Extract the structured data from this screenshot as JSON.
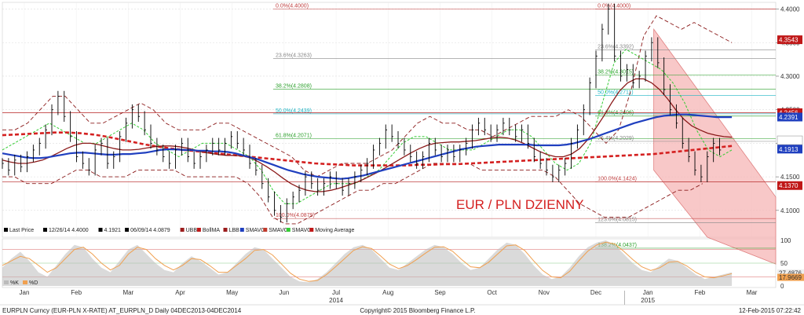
{
  "footer": {
    "left": "EURPLN Curncy (EUR-PLN X-RATE) AT_EURPLN_D  Daily 04DEC2013-04DEC2014",
    "center": "Copyright© 2015 Bloomberg Finance L.P.",
    "right": "12-Feb-2015 07:22:42"
  },
  "legend": {
    "items": [
      {
        "label": "Last Price",
        "color": "#000000"
      },
      {
        "label": "12/26/14 4.4000",
        "color": "#000000"
      },
      {
        "label": "4.1921",
        "color": "#000000"
      },
      {
        "label": "06/09/14 4.0879",
        "color": "#000000"
      },
      {
        "label": "UBB",
        "color": "#9b1c1c"
      },
      {
        "label": "BollMA",
        "color": "#c01818"
      },
      {
        "label": "LBB",
        "color": "#9b1c1c"
      },
      {
        "label": "SMAVG",
        "color": "#1f3fbf"
      },
      {
        "label": "SMAVG",
        "color": "#c0392b"
      },
      {
        "label": "SMAVG",
        "color": "#33cc33"
      },
      {
        "label": "Moving Average",
        "color": "#c01818"
      }
    ]
  },
  "oscillator_legend": {
    "k_label": "%K",
    "d_label": "%D"
  },
  "colors": {
    "price": "#000000",
    "bollinger": "#8b1a1a",
    "sma_blue": "#1f3fbf",
    "sma_red": "#8b1a1a",
    "sma_green": "#33cc33",
    "moving_average": "#d42020",
    "channel_fill": "#f6b6b6",
    "fib_red": "#c04040",
    "fib_green": "#2ca02c",
    "fib_cyan": "#1fb5c4",
    "stoch_k": "#bbbbbb",
    "stoch_d": "#f0a050"
  },
  "chart_data": {
    "type": "line",
    "title": "EUR / PLN DZIENNY",
    "ylim": [
      4.06,
      4.41
    ],
    "x_months": [
      "Jan",
      "Feb",
      "Mar",
      "Apr",
      "May",
      "Jun",
      "Jul",
      "Aug",
      "Sep",
      "Oct",
      "Nov",
      "Dec",
      "Jan",
      "Feb",
      "Mar"
    ],
    "x_years": [
      "2014",
      "2015"
    ],
    "y_ticks": [
      "4.4000",
      "4.3500",
      "4.3000",
      "4.2500",
      "4.2000",
      "4.1500",
      "4.1000"
    ],
    "price_badges": [
      {
        "label": "4.3543",
        "value": 4.3543,
        "color": "#c01818"
      },
      {
        "label": "4.2456",
        "value": 4.2456,
        "color": "#c01818"
      },
      {
        "label": "4.2391",
        "value": 4.2391,
        "color": "#1f3fbf"
      },
      {
        "label": "4.2045",
        "value": 4.2045,
        "color": "#ffffff"
      },
      {
        "label": "4.1913",
        "value": 4.1913,
        "color": "#1f3fbf"
      },
      {
        "label": "4.1370",
        "value": 4.137,
        "color": "#c01818"
      }
    ],
    "fibonacci_left": [
      {
        "label": "0.0%(4.4000)",
        "value": 4.4,
        "color": "#c04040"
      },
      {
        "label": "23.6%(4.3263)",
        "value": 4.3263,
        "color": "#888888"
      },
      {
        "label": "38.2%(4.2808)",
        "value": 4.2808,
        "color": "#2ca02c"
      },
      {
        "label": "50.0%(4.2439)",
        "value": 4.2439,
        "color": "#1fb5c4"
      },
      {
        "label": "61.8%(4.2071)",
        "value": 4.2071,
        "color": "#2ca02c"
      },
      {
        "label": "100.0%(4.0879)",
        "value": 4.0879,
        "color": "#c04040"
      }
    ],
    "fibonacci_right": [
      {
        "label": "0.0%(4.4000)",
        "value": 4.4,
        "color": "#c04040"
      },
      {
        "label": "23.6%(4.3392)",
        "value": 4.3392,
        "color": "#888888"
      },
      {
        "label": "38.2%(4.3015)",
        "value": 4.3015,
        "color": "#2ca02c"
      },
      {
        "label": "50.0%(4.2711)",
        "value": 4.2711,
        "color": "#1fb5c4"
      },
      {
        "label": "61.8%(4.2406)",
        "value": 4.2406,
        "color": "#2ca02c"
      },
      {
        "label": "76.4%(4.2029)",
        "value": 4.2029,
        "color": "#888888"
      },
      {
        "label": "100.0%(4.1424)",
        "value": 4.1424,
        "color": "#c04040"
      },
      {
        "label": "123.6%(4.0815)",
        "value": 4.0815,
        "color": "#888888"
      },
      {
        "label": "138.2%(4.0437)",
        "value": 4.0437,
        "color": "#2ca02c"
      }
    ],
    "series_close": [
      4.17,
      4.16,
      4.175,
      4.165,
      4.18,
      4.19,
      4.2,
      4.22,
      4.25,
      4.27,
      4.24,
      4.21,
      4.18,
      4.17,
      4.16,
      4.19,
      4.2,
      4.17,
      4.18,
      4.21,
      4.23,
      4.25,
      4.24,
      4.22,
      4.2,
      4.19,
      4.18,
      4.17,
      4.19,
      4.2,
      4.18,
      4.17,
      4.18,
      4.19,
      4.2,
      4.19,
      4.2,
      4.21,
      4.2,
      4.19,
      4.17,
      4.16,
      4.14,
      4.12,
      4.1,
      4.09,
      4.11,
      4.12,
      4.13,
      4.15,
      4.14,
      4.13,
      4.14,
      4.15,
      4.14,
      4.13,
      4.14,
      4.15,
      4.16,
      4.17,
      4.19,
      4.2,
      4.22,
      4.21,
      4.2,
      4.19,
      4.18,
      4.17,
      4.18,
      4.2,
      4.19,
      4.18,
      4.19,
      4.18,
      4.19,
      4.2,
      4.22,
      4.23,
      4.22,
      4.21,
      4.22,
      4.23,
      4.22,
      4.21,
      4.22,
      4.2,
      4.18,
      4.17,
      4.16,
      4.15,
      4.16,
      4.17,
      4.2,
      4.22,
      4.25,
      4.29,
      4.33,
      4.37,
      4.4,
      4.33,
      4.3,
      4.31,
      4.29,
      4.3,
      4.33,
      4.35,
      4.32,
      4.28,
      4.25,
      4.23,
      4.2,
      4.18,
      4.16,
      4.15,
      4.18,
      4.2,
      4.19
    ],
    "series_sma_blue": [
      4.185,
      4.183,
      4.181,
      4.179,
      4.178,
      4.178,
      4.179,
      4.181,
      4.183,
      4.185,
      4.186,
      4.186,
      4.185,
      4.184,
      4.183,
      4.183,
      4.184,
      4.184,
      4.185,
      4.186,
      4.188,
      4.19,
      4.191,
      4.191,
      4.19,
      4.19,
      4.189,
      4.189,
      4.188,
      4.188,
      4.187,
      4.185,
      4.182,
      4.179,
      4.176,
      4.172,
      4.168,
      4.164,
      4.16,
      4.157,
      4.154,
      4.152,
      4.15,
      4.149,
      4.148,
      4.147,
      4.148,
      4.15,
      4.152,
      4.155,
      4.158,
      4.161,
      4.164,
      4.167,
      4.17,
      4.173,
      4.176,
      4.179,
      4.182,
      4.185,
      4.188,
      4.191,
      4.193,
      4.195,
      4.196,
      4.197,
      4.198,
      4.198,
      4.198,
      4.198,
      4.198,
      4.197,
      4.197,
      4.197,
      4.197,
      4.198,
      4.2,
      4.203,
      4.206,
      4.21,
      4.214,
      4.218,
      4.222,
      4.226,
      4.23,
      4.233,
      4.236,
      4.239,
      4.241,
      4.242,
      4.243,
      4.243,
      4.242,
      4.241,
      4.24,
      4.239,
      4.239,
      4.239
    ],
    "series_sma_red": [
      4.175,
      4.172,
      4.17,
      4.17,
      4.172,
      4.175,
      4.18,
      4.186,
      4.192,
      4.197,
      4.2,
      4.2,
      4.198,
      4.195,
      4.192,
      4.19,
      4.19,
      4.191,
      4.193,
      4.195,
      4.196,
      4.196,
      4.195,
      4.193,
      4.19,
      4.187,
      4.185,
      4.183,
      4.182,
      4.182,
      4.181,
      4.178,
      4.172,
      4.165,
      4.157,
      4.148,
      4.14,
      4.134,
      4.13,
      4.128,
      4.128,
      4.13,
      4.133,
      4.137,
      4.141,
      4.146,
      4.152,
      4.158,
      4.165,
      4.172,
      4.179,
      4.186,
      4.192,
      4.197,
      4.2,
      4.201,
      4.202,
      4.202,
      4.203,
      4.204,
      4.206,
      4.208,
      4.209,
      4.208,
      4.205,
      4.2,
      4.194,
      4.188,
      4.183,
      4.18,
      4.18,
      4.184,
      4.192,
      4.205,
      4.222,
      4.24,
      4.26,
      4.278,
      4.29,
      4.296,
      4.296,
      4.29,
      4.28,
      4.266,
      4.25,
      4.236,
      4.226,
      4.22,
      4.215,
      4.212,
      4.21,
      4.209
    ],
    "series_moving_avg": [
      4.212,
      4.213,
      4.214,
      4.215,
      4.216,
      4.216,
      4.215,
      4.213,
      4.21,
      4.206,
      4.202,
      4.198,
      4.195,
      4.192,
      4.19,
      4.188,
      4.186,
      4.184,
      4.182,
      4.18,
      4.178,
      4.176,
      4.174,
      4.172,
      4.17,
      4.169,
      4.168,
      4.167,
      4.167,
      4.167,
      4.167,
      4.167,
      4.168,
      4.168,
      4.169,
      4.169,
      4.17,
      4.171,
      4.172,
      4.173,
      4.174,
      4.175,
      4.176,
      4.177,
      4.178,
      4.179,
      4.18,
      4.181,
      4.182,
      4.183,
      4.184,
      4.186,
      4.188,
      4.19,
      4.192,
      4.194,
      4.196
    ],
    "series_sma_green": [
      4.19,
      4.2,
      4.21,
      4.22,
      4.23,
      4.22,
      4.21,
      4.2,
      4.2,
      4.21,
      4.22,
      4.23,
      4.22,
      4.2,
      4.19,
      4.18,
      4.19,
      4.2,
      4.2,
      4.2,
      4.19,
      4.18,
      4.16,
      4.13,
      4.11,
      4.11,
      4.12,
      4.13,
      4.14,
      4.14,
      4.14,
      4.15,
      4.16,
      4.18,
      4.2,
      4.21,
      4.21,
      4.2,
      4.19,
      4.19,
      4.19,
      4.2,
      4.21,
      4.22,
      4.22,
      4.21,
      4.19,
      4.17,
      4.16,
      4.17,
      4.2,
      4.26,
      4.32,
      4.34,
      4.33,
      4.32,
      4.31,
      4.29,
      4.26,
      4.22,
      4.19,
      4.18,
      4.19
    ],
    "series_upper_band": [
      4.22,
      4.22,
      4.23,
      4.25,
      4.27,
      4.27,
      4.25,
      4.23,
      4.23,
      4.24,
      4.25,
      4.26,
      4.25,
      4.23,
      4.22,
      4.22,
      4.22,
      4.23,
      4.23,
      4.22,
      4.21,
      4.2,
      4.19,
      4.18,
      4.16,
      4.15,
      4.16,
      4.17,
      4.17,
      4.17,
      4.18,
      4.19,
      4.21,
      4.23,
      4.24,
      4.23,
      4.23,
      4.22,
      4.22,
      4.21,
      4.22,
      4.23,
      4.24,
      4.24,
      4.24,
      4.25,
      4.24,
      4.22,
      4.2,
      4.22,
      4.28,
      4.36,
      4.39,
      4.38,
      4.37,
      4.38,
      4.37,
      4.36,
      4.35
    ],
    "series_lower_band": [
      4.15,
      4.15,
      4.14,
      4.14,
      4.14,
      4.15,
      4.16,
      4.16,
      4.15,
      4.15,
      4.15,
      4.16,
      4.16,
      4.16,
      4.16,
      4.15,
      4.15,
      4.15,
      4.15,
      4.15,
      4.14,
      4.12,
      4.09,
      4.08,
      4.08,
      4.09,
      4.1,
      4.11,
      4.12,
      4.13,
      4.13,
      4.14,
      4.14,
      4.15,
      4.16,
      4.17,
      4.17,
      4.17,
      4.17,
      4.16,
      4.16,
      4.16,
      4.16,
      4.16,
      4.16,
      4.15,
      4.13,
      4.11,
      4.1,
      4.09,
      4.09,
      4.09,
      4.1,
      4.11,
      4.12,
      4.13,
      4.13,
      4.14
    ],
    "oscillator": {
      "y_ticks": [
        "100",
        "50",
        "0"
      ],
      "ylim": [
        0,
        100
      ],
      "levels": [
        80,
        50,
        20
      ],
      "k_value": "27.4876",
      "d_value": "17.9669",
      "k": [
        40,
        60,
        75,
        55,
        30,
        20,
        45,
        70,
        90,
        85,
        60,
        40,
        30,
        55,
        80,
        90,
        70,
        50,
        35,
        30,
        50,
        65,
        55,
        40,
        25,
        30,
        50,
        70,
        85,
        80,
        60,
        40,
        20,
        10,
        8,
        15,
        30,
        50,
        70,
        85,
        90,
        80,
        60,
        40,
        35,
        50,
        65,
        80,
        90,
        85,
        70,
        50,
        35,
        40,
        60,
        80,
        95,
        90,
        70,
        45,
        25,
        15,
        20,
        40,
        65,
        85,
        95,
        100,
        90,
        70,
        50,
        35,
        30,
        45,
        60,
        55,
        40,
        25,
        15,
        20,
        25,
        30
      ],
      "d": [
        45,
        55,
        65,
        60,
        45,
        30,
        40,
        60,
        80,
        85,
        70,
        50,
        35,
        45,
        70,
        85,
        80,
        60,
        45,
        35,
        45,
        60,
        58,
        45,
        30,
        30,
        45,
        60,
        78,
        80,
        68,
        48,
        28,
        15,
        10,
        12,
        25,
        42,
        60,
        78,
        86,
        82,
        66,
        48,
        38,
        45,
        58,
        72,
        85,
        86,
        76,
        58,
        42,
        40,
        52,
        70,
        88,
        90,
        78,
        55,
        34,
        20,
        18,
        32,
        55,
        76,
        90,
        96,
        92,
        76,
        58,
        42,
        34,
        40,
        52,
        54,
        44,
        30,
        20,
        18,
        22,
        27
      ]
    }
  }
}
